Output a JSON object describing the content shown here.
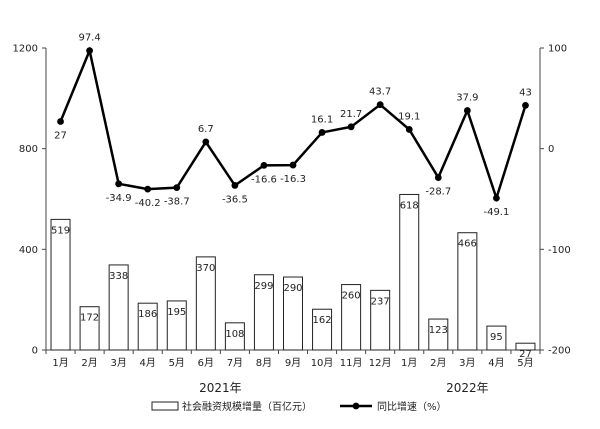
{
  "chart_data": {
    "type": "bar",
    "categories": [
      "1月",
      "2月",
      "3月",
      "4月",
      "5月",
      "6月",
      "7月",
      "8月",
      "9月",
      "10月",
      "11月",
      "12月",
      "1月",
      "2月",
      "3月",
      "4月",
      "5月"
    ],
    "year_labels": [
      {
        "label": "2021年",
        "category_indices": [
          0,
          11
        ]
      },
      {
        "label": "2022年",
        "category_indices": [
          12,
          16
        ]
      }
    ],
    "series": [
      {
        "name": "社会融资规模增量（百亿元）",
        "type": "bar",
        "axis": "left",
        "values": [
          519,
          172,
          338,
          186,
          195,
          370,
          108,
          299,
          290,
          162,
          260,
          237,
          618,
          123,
          466,
          95,
          27
        ],
        "color": "#ffffff",
        "stroke": "#222222"
      },
      {
        "name": "同比增速（%）",
        "type": "line",
        "axis": "right",
        "values": [
          27,
          97.4,
          -34.9,
          -40.2,
          -38.7,
          6.7,
          -36.5,
          -16.6,
          -16.3,
          16.1,
          21.7,
          43.7,
          19.1,
          -28.7,
          37.9,
          -49.1,
          43
        ],
        "color": "#000000"
      }
    ],
    "y_left": {
      "min": 0,
      "max": 1200,
      "ticks": [
        0,
        400,
        800,
        1200
      ]
    },
    "y_right": {
      "min": -200,
      "max": 100,
      "ticks": [
        -200,
        -100,
        0,
        100
      ]
    },
    "title": "",
    "xlabel": "",
    "grid": false,
    "legend_position": "bottom"
  }
}
